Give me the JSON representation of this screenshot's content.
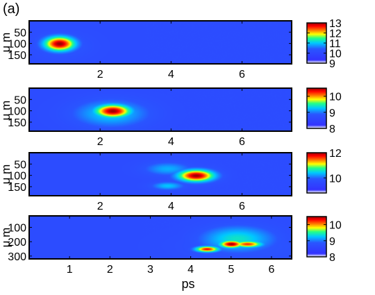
{
  "figure": {
    "panel_label": "(a)",
    "xlabel": "ps"
  },
  "colormap": [
    "#ffffff",
    "#3333ff",
    "#2a55ff",
    "#00c8ff",
    "#22ff88",
    "#ffff00",
    "#ff7700",
    "#ff0000",
    "#9b0000"
  ],
  "chart_data": [
    {
      "type": "heatmap",
      "title": "",
      "xlabel": "",
      "ylabel": "μ m",
      "xlim": [
        0,
        7.4
      ],
      "ylim": [
        190,
        0
      ],
      "x_ticks": [
        2,
        4,
        6
      ],
      "x_tick_labels": [
        "2",
        "4",
        "6"
      ],
      "y_ticks": [
        50,
        100,
        150
      ],
      "y_tick_labels": [
        "50",
        "100",
        "150"
      ],
      "colorbar": {
        "range": [
          9,
          13
        ],
        "ticks": [
          9,
          10,
          11,
          12,
          13
        ],
        "tick_labels": [
          "9",
          "10",
          "11",
          "12",
          "13"
        ]
      },
      "hotspots": [
        {
          "x": 0.85,
          "y": 100,
          "sx": 0.3,
          "sy": 22,
          "value": 13
        },
        {
          "x": 0.95,
          "y": 110,
          "sx": 0.5,
          "sy": 35,
          "value": 10.5
        }
      ]
    },
    {
      "type": "heatmap",
      "title": "",
      "xlabel": "",
      "ylabel": "μ m",
      "xlim": [
        0,
        7.4
      ],
      "ylim": [
        190,
        0
      ],
      "x_ticks": [
        2,
        4,
        6
      ],
      "x_tick_labels": [
        "2",
        "4",
        "6"
      ],
      "y_ticks": [
        50,
        100,
        150
      ],
      "y_tick_labels": [
        "50",
        "100",
        "150"
      ],
      "colorbar": {
        "range": [
          8,
          10.5
        ],
        "ticks": [
          8,
          9,
          10
        ],
        "tick_labels": [
          "8",
          "9",
          "10"
        ]
      },
      "hotspots": [
        {
          "x": 2.35,
          "y": 100,
          "sx": 0.35,
          "sy": 20,
          "value": 10.5
        },
        {
          "x": 2.3,
          "y": 110,
          "sx": 0.7,
          "sy": 40,
          "value": 9.3
        }
      ]
    },
    {
      "type": "heatmap",
      "title": "",
      "xlabel": "",
      "ylabel": "μ m",
      "xlim": [
        0,
        7.4
      ],
      "ylim": [
        190,
        0
      ],
      "x_ticks": [
        2,
        4,
        6
      ],
      "x_tick_labels": [
        "2",
        "4",
        "6"
      ],
      "y_ticks": [
        50,
        100,
        150
      ],
      "y_tick_labels": [
        "50",
        "100",
        "150"
      ],
      "colorbar": {
        "range": [
          8.8,
          12
        ],
        "ticks": [
          10,
          12
        ],
        "tick_labels": [
          "10",
          "12"
        ]
      },
      "hotspots": [
        {
          "x": 4.7,
          "y": 100,
          "sx": 0.35,
          "sy": 18,
          "value": 12
        },
        {
          "x": 3.9,
          "y": 70,
          "sx": 0.45,
          "sy": 20,
          "value": 10.3
        },
        {
          "x": 3.9,
          "y": 145,
          "sx": 0.3,
          "sy": 12,
          "value": 10.4
        },
        {
          "x": 4.4,
          "y": 110,
          "sx": 1.0,
          "sy": 45,
          "value": 9.7
        }
      ]
    },
    {
      "type": "heatmap",
      "title": "",
      "xlabel": "ps",
      "ylabel": "μ m",
      "xlim": [
        0,
        6.5
      ],
      "ylim": [
        320,
        20
      ],
      "x_ticks": [
        1,
        2,
        3,
        4,
        5,
        6
      ],
      "x_tick_labels": [
        "1",
        "2",
        "3",
        "4",
        "5",
        "6"
      ],
      "y_ticks": [
        100,
        200,
        300
      ],
      "y_tick_labels": [
        "100",
        "200",
        "300"
      ],
      "colorbar": {
        "range": [
          8,
          10.5
        ],
        "ticks": [
          8,
          9,
          10
        ],
        "tick_labels": [
          "8",
          "9",
          "10"
        ]
      },
      "hotspots": [
        {
          "x": 5.0,
          "y": 215,
          "sx": 0.2,
          "sy": 18,
          "value": 10.5
        },
        {
          "x": 4.4,
          "y": 250,
          "sx": 0.2,
          "sy": 14,
          "value": 10.3
        },
        {
          "x": 5.4,
          "y": 215,
          "sx": 0.25,
          "sy": 16,
          "value": 10.2
        },
        {
          "x": 5.15,
          "y": 180,
          "sx": 0.6,
          "sy": 60,
          "value": 9.4
        },
        {
          "x": 5.3,
          "y": 230,
          "sx": 1.0,
          "sy": 70,
          "value": 8.9
        }
      ]
    }
  ]
}
